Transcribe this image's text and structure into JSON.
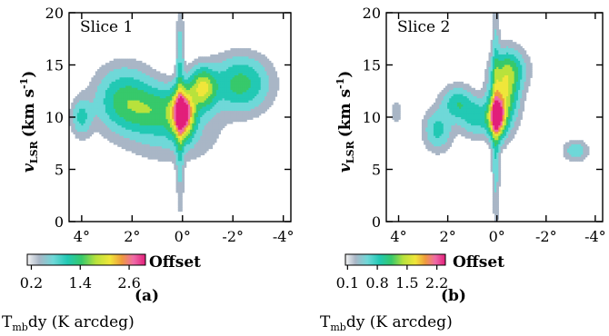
{
  "chart_data": [
    {
      "type": "heatmap",
      "title": "Slice 1",
      "panel_label": "(a)",
      "xlabel": "Offset",
      "ylabel_main": "v",
      "ylabel_sub": "LSR",
      "ylabel_units": "(km s",
      "ylabel_exp": "-1",
      "ylabel_close": ")",
      "xlim": [
        4.5,
        -4.3
      ],
      "ylim": [
        0,
        20
      ],
      "x_ticks": [
        4,
        2,
        0,
        -2,
        -4
      ],
      "x_tick_labels": [
        "4°",
        "2°",
        "0°",
        "-2°",
        "-4°"
      ],
      "y_ticks": [
        0,
        5,
        10,
        15,
        20
      ],
      "y_tick_labels": [
        "0",
        "5",
        "10",
        "15",
        "20"
      ],
      "colorbar": {
        "label_main": "T",
        "label_sub": "mb",
        "label_rest": "dy (K arcdeg)",
        "tick_labels": [
          "0.2",
          "1.4",
          "2.6"
        ],
        "tick_values": [
          0.2,
          1.4,
          2.6
        ],
        "range": [
          0.1,
          3.0
        ]
      },
      "components": [
        {
          "x": 0.0,
          "y": 10.3,
          "sx": 0.28,
          "sy": 1.4,
          "amp": 2.8
        },
        {
          "x": 0.1,
          "y": 11.0,
          "sx": 0.1,
          "sy": 5.0,
          "amp": 0.7
        },
        {
          "x": -0.8,
          "y": 12.8,
          "sx": 0.35,
          "sy": 1.2,
          "amp": 1.5
        },
        {
          "x": -2.3,
          "y": 13.2,
          "sx": 0.7,
          "sy": 1.6,
          "amp": 0.9
        },
        {
          "x": 1.0,
          "y": 10.6,
          "sx": 1.1,
          "sy": 1.5,
          "amp": 0.95
        },
        {
          "x": 2.3,
          "y": 12.0,
          "sx": 0.7,
          "sy": 1.8,
          "amp": 0.7
        },
        {
          "x": 4.0,
          "y": 10.0,
          "sx": 0.25,
          "sy": 1.1,
          "amp": 0.55
        },
        {
          "x": 0.4,
          "y": 7.8,
          "sx": 1.2,
          "sy": 1.5,
          "amp": 0.2
        }
      ]
    },
    {
      "type": "heatmap",
      "title": "Slice 2",
      "panel_label": "(b)",
      "xlabel": "Offset",
      "ylabel_main": "v",
      "ylabel_sub": "LSR",
      "ylabel_units": "(km s",
      "ylabel_exp": "-1",
      "ylabel_close": ")",
      "xlim": [
        4.5,
        -4.3
      ],
      "ylim": [
        0,
        20
      ],
      "x_ticks": [
        4,
        2,
        0,
        -2,
        -4
      ],
      "x_tick_labels": [
        "4°",
        "2°",
        "0°",
        "-2°",
        "-4°"
      ],
      "y_ticks": [
        0,
        5,
        10,
        15,
        20
      ],
      "y_tick_labels": [
        "0",
        "5",
        "10",
        "15",
        "20"
      ],
      "colorbar": {
        "label_main": "T",
        "label_sub": "mb",
        "label_rest": "dy (K arcdeg)",
        "tick_labels": [
          "0.1",
          "0.8",
          "1.5",
          "2.2"
        ],
        "tick_values": [
          0.1,
          0.8,
          1.5,
          2.2
        ],
        "range": [
          0.05,
          2.4
        ]
      },
      "components": [
        {
          "x": 0.0,
          "y": 10.0,
          "sx": 0.22,
          "sy": 1.2,
          "amp": 2.2
        },
        {
          "x": 0.05,
          "y": 10.5,
          "sx": 0.1,
          "sy": 5.5,
          "amp": 0.5
        },
        {
          "x": -0.3,
          "y": 12.4,
          "sx": 0.35,
          "sy": 2.0,
          "amp": 1.1
        },
        {
          "x": -0.6,
          "y": 14.5,
          "sx": 0.4,
          "sy": 1.2,
          "amp": 0.5
        },
        {
          "x": 0.8,
          "y": 10.0,
          "sx": 0.45,
          "sy": 1.1,
          "amp": 0.5
        },
        {
          "x": 1.6,
          "y": 11.3,
          "sx": 0.4,
          "sy": 1.0,
          "amp": 0.55
        },
        {
          "x": 2.4,
          "y": 8.8,
          "sx": 0.35,
          "sy": 1.2,
          "amp": 0.45
        },
        {
          "x": -3.2,
          "y": 6.8,
          "sx": 0.3,
          "sy": 0.6,
          "amp": 0.32
        },
        {
          "x": 4.1,
          "y": 10.5,
          "sx": 0.15,
          "sy": 0.9,
          "amp": 0.12
        }
      ]
    }
  ]
}
